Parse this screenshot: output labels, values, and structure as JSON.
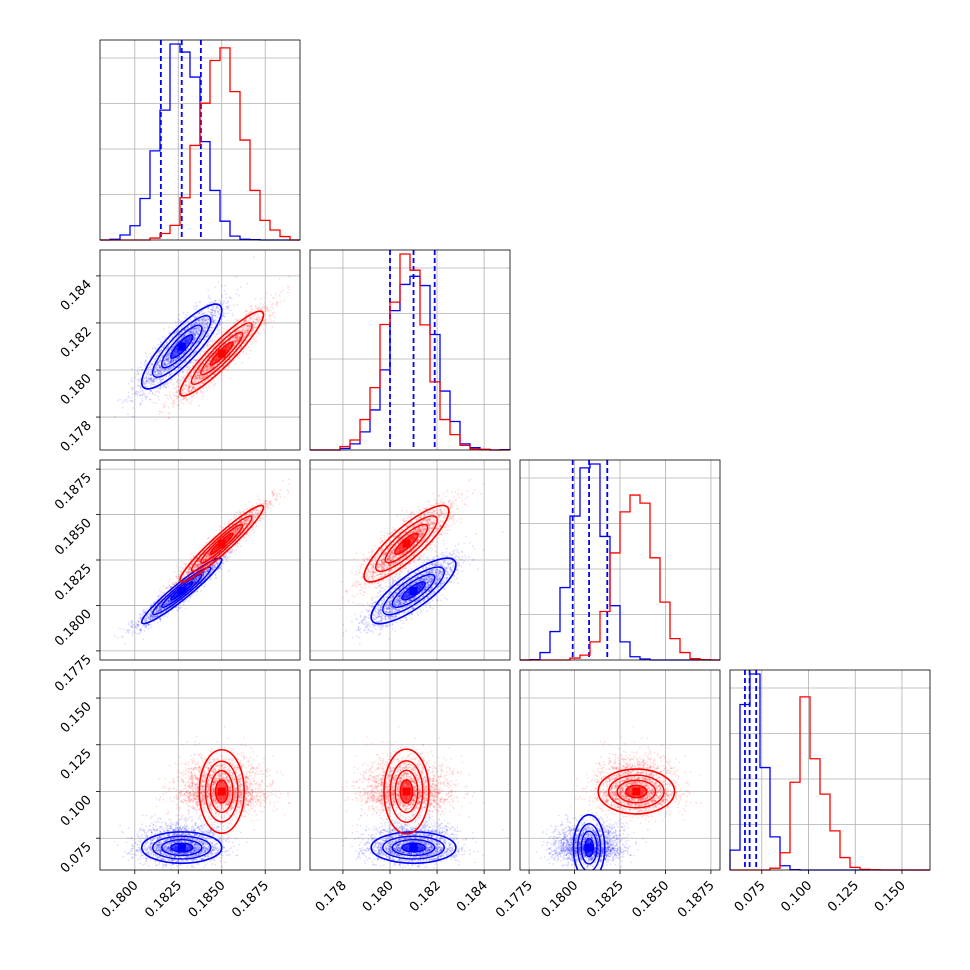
{
  "chart_data": {
    "type": "corner",
    "colors": {
      "blue": "#0000ff",
      "red": "#ff0000"
    },
    "grid": true,
    "series": [
      {
        "color": "blue",
        "mean": [
          0.1827,
          0.181,
          0.1808,
          0.07
        ],
        "sd": [
          0.00115,
          0.0009,
          0.0009,
          0.0042
        ],
        "quantiles_1d": [
          [
            0.1815,
            0.1827,
            0.1838
          ],
          [
            0.18,
            0.181,
            0.1819
          ],
          [
            0.1799,
            0.1808,
            0.1818
          ],
          [
            0.066,
            0.0685,
            0.072
          ]
        ]
      },
      {
        "color": "red",
        "mean": [
          0.185,
          0.1807,
          0.1834,
          0.1
        ],
        "sd": [
          0.0012,
          0.0009,
          0.00105,
          0.006
        ]
      }
    ],
    "correlations": {
      "blue": {
        "1-0": 0.85,
        "2-0": 0.95,
        "2-1": 0.8
      },
      "red": {
        "1-0": 0.92,
        "2-0": 0.95,
        "2-1": 0.85
      }
    },
    "axes": [
      {
        "range": [
          0.178,
          0.1895
        ],
        "ticks": [
          "0.1800",
          "0.1825",
          "0.1850",
          "0.1875"
        ]
      },
      {
        "range": [
          0.1766,
          0.1851
        ],
        "ticks": [
          "0.178",
          "0.180",
          "0.182",
          "0.184"
        ]
      },
      {
        "range": [
          0.177,
          0.188
        ],
        "ticks": [
          "0.1775",
          "0.1800",
          "0.1825",
          "0.1850",
          "0.1875"
        ]
      },
      {
        "range": [
          0.058,
          0.165
        ],
        "ticks": [
          "0.075",
          "0.100",
          "0.125",
          "0.150"
        ]
      }
    ]
  }
}
